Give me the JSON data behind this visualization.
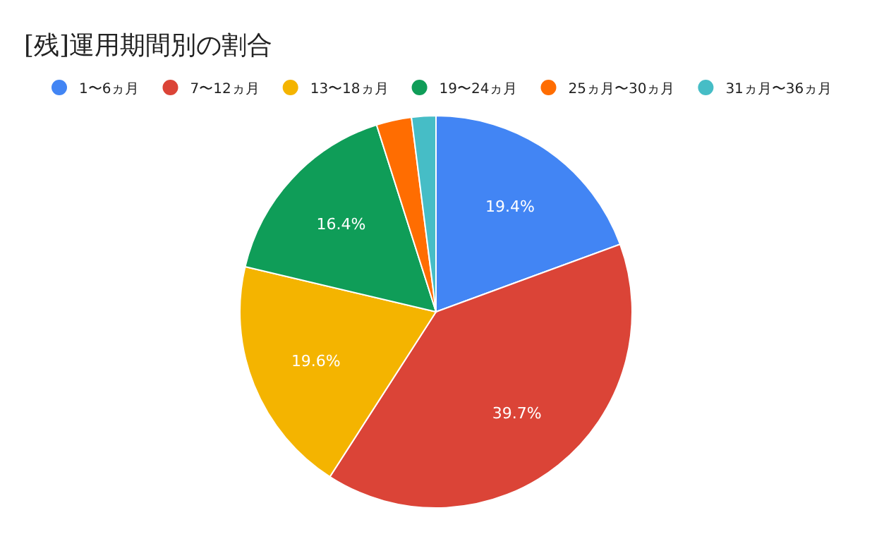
{
  "chart_data": {
    "type": "pie",
    "title": "[残]運用期間別の割合",
    "categories": [
      "1〜6ヵ月",
      "7〜12ヵ月",
      "13〜18ヵ月",
      "19〜24ヵ月",
      "25ヵ月〜30ヵ月",
      "31ヵ月〜36ヵ月"
    ],
    "values": [
      19.4,
      39.7,
      19.6,
      16.4,
      2.9,
      2.0
    ],
    "colors": [
      "#4285f4",
      "#db4437",
      "#f4b400",
      "#0f9d58",
      "#ff6d01",
      "#46bdc6"
    ],
    "value_labels": [
      "19.4%",
      "39.7%",
      "19.6%",
      "16.4%",
      null,
      null
    ],
    "legend": "top"
  }
}
